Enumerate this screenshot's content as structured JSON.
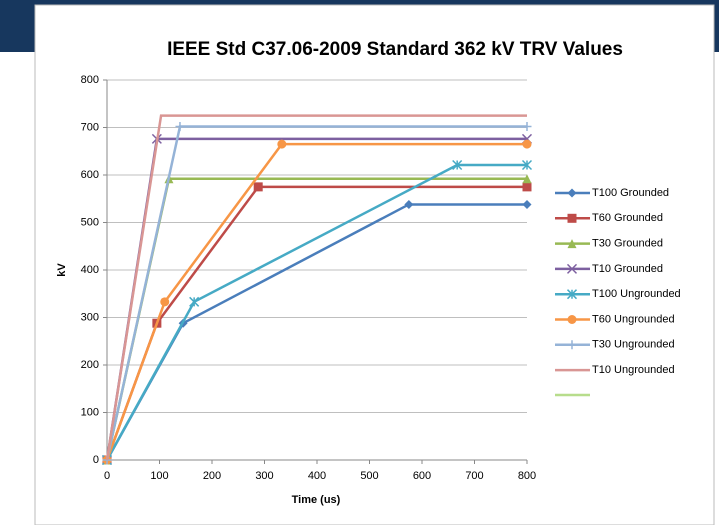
{
  "chart_data": {
    "type": "line",
    "title": "IEEE Std C37.06-2009 Standard 362 kV TRV Values",
    "xlabel": "Time (us)",
    "ylabel": "kV",
    "xlim": [
      0,
      800
    ],
    "ylim": [
      0,
      800
    ],
    "xticks": [
      0,
      100,
      200,
      300,
      400,
      500,
      600,
      700,
      800
    ],
    "yticks": [
      0,
      100,
      200,
      300,
      400,
      500,
      600,
      700,
      800
    ],
    "grid": true,
    "legend": "right",
    "series": [
      {
        "name": "T100 Grounded",
        "color": "#4a7ebb",
        "marker": "diamond",
        "x": [
          0,
          145,
          575,
          800
        ],
        "values": [
          0,
          288,
          538,
          538
        ]
      },
      {
        "name": "T60 Grounded",
        "color": "#be4b48",
        "marker": "square",
        "x": [
          0,
          95,
          288,
          800
        ],
        "values": [
          0,
          288,
          575,
          575
        ]
      },
      {
        "name": "T30 Grounded",
        "color": "#98b954",
        "marker": "triangle",
        "x": [
          0,
          118,
          800
        ],
        "values": [
          0,
          592,
          592
        ]
      },
      {
        "name": "T10 Grounded",
        "color": "#7d60a0",
        "marker": "x",
        "x": [
          0,
          95,
          800
        ],
        "values": [
          0,
          676,
          676
        ]
      },
      {
        "name": "T100 Ungrounded",
        "color": "#46aac5",
        "marker": "star",
        "x": [
          0,
          166,
          667,
          800
        ],
        "values": [
          0,
          333,
          621,
          621
        ]
      },
      {
        "name": "T60 Ungrounded",
        "color": "#f79646",
        "marker": "circle",
        "x": [
          0,
          110,
          333,
          800
        ],
        "values": [
          0,
          333,
          665,
          665
        ]
      },
      {
        "name": "T30 Ungrounded",
        "color": "#95b3d7",
        "marker": "plus",
        "x": [
          0,
          139,
          800
        ],
        "values": [
          0,
          702,
          702
        ]
      },
      {
        "name": "T10 Ungrounded",
        "color": "#d99694",
        "marker": "none",
        "x": [
          0,
          103,
          800
        ],
        "values": [
          0,
          725,
          725
        ]
      }
    ]
  }
}
